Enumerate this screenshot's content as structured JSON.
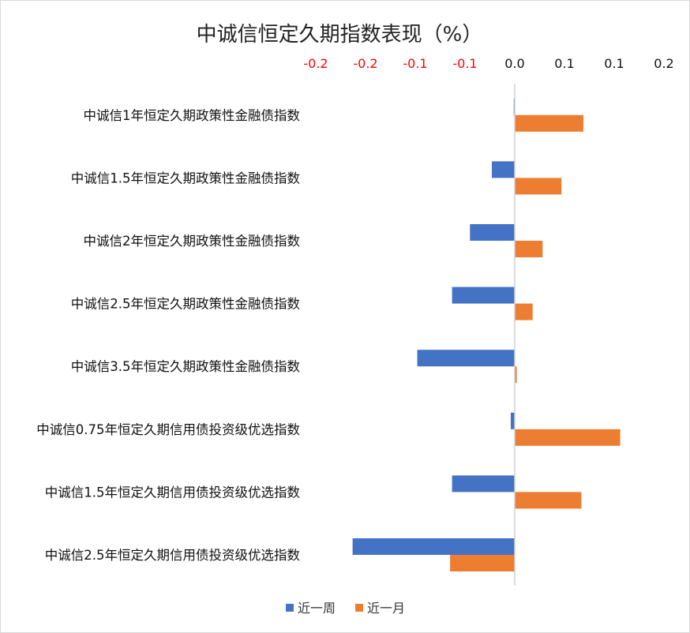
{
  "chart_data": {
    "type": "bar",
    "orientation": "horizontal",
    "title": "中诚信恒定久期指数表现（%）",
    "xlabel": "",
    "ylabel": "",
    "xlim": [
      -0.2,
      0.15
    ],
    "x_ticks": [
      -0.2,
      -0.15,
      -0.1,
      -0.05,
      0.0,
      0.05,
      0.1,
      0.15
    ],
    "x_tick_labels": [
      "-0.2",
      "-0.2",
      "-0.1",
      "-0.1",
      "0.0",
      "0.1",
      "0.1",
      "0.2"
    ],
    "negative_tick_color": "#ff0000",
    "categories": [
      "中诚信1年恒定久期政策性金融债指数",
      "中诚信1.5年恒定久期政策性金融债指数",
      "中诚信2年恒定久期政策性金融债指数",
      "中诚信2.5年恒定久期政策性金融债指数",
      "中诚信3.5年恒定久期政策性金融债指数",
      "中诚信0.75年恒定久期信用债投资级优选指数",
      "中诚信1.5年恒定久期信用债投资级优选指数",
      "中诚信2.5年恒定久期信用债投资级优选指数"
    ],
    "series": [
      {
        "name": "近一周",
        "color": "#4472c4",
        "values": [
          -0.001,
          -0.023,
          -0.045,
          -0.063,
          -0.098,
          -0.004,
          -0.063,
          -0.163
        ]
      },
      {
        "name": "近一月",
        "color": "#ed7d31",
        "values": [
          0.069,
          0.047,
          0.028,
          0.018,
          0.002,
          0.106,
          0.067,
          -0.065
        ]
      }
    ],
    "grid": false,
    "legend_position": "bottom"
  }
}
